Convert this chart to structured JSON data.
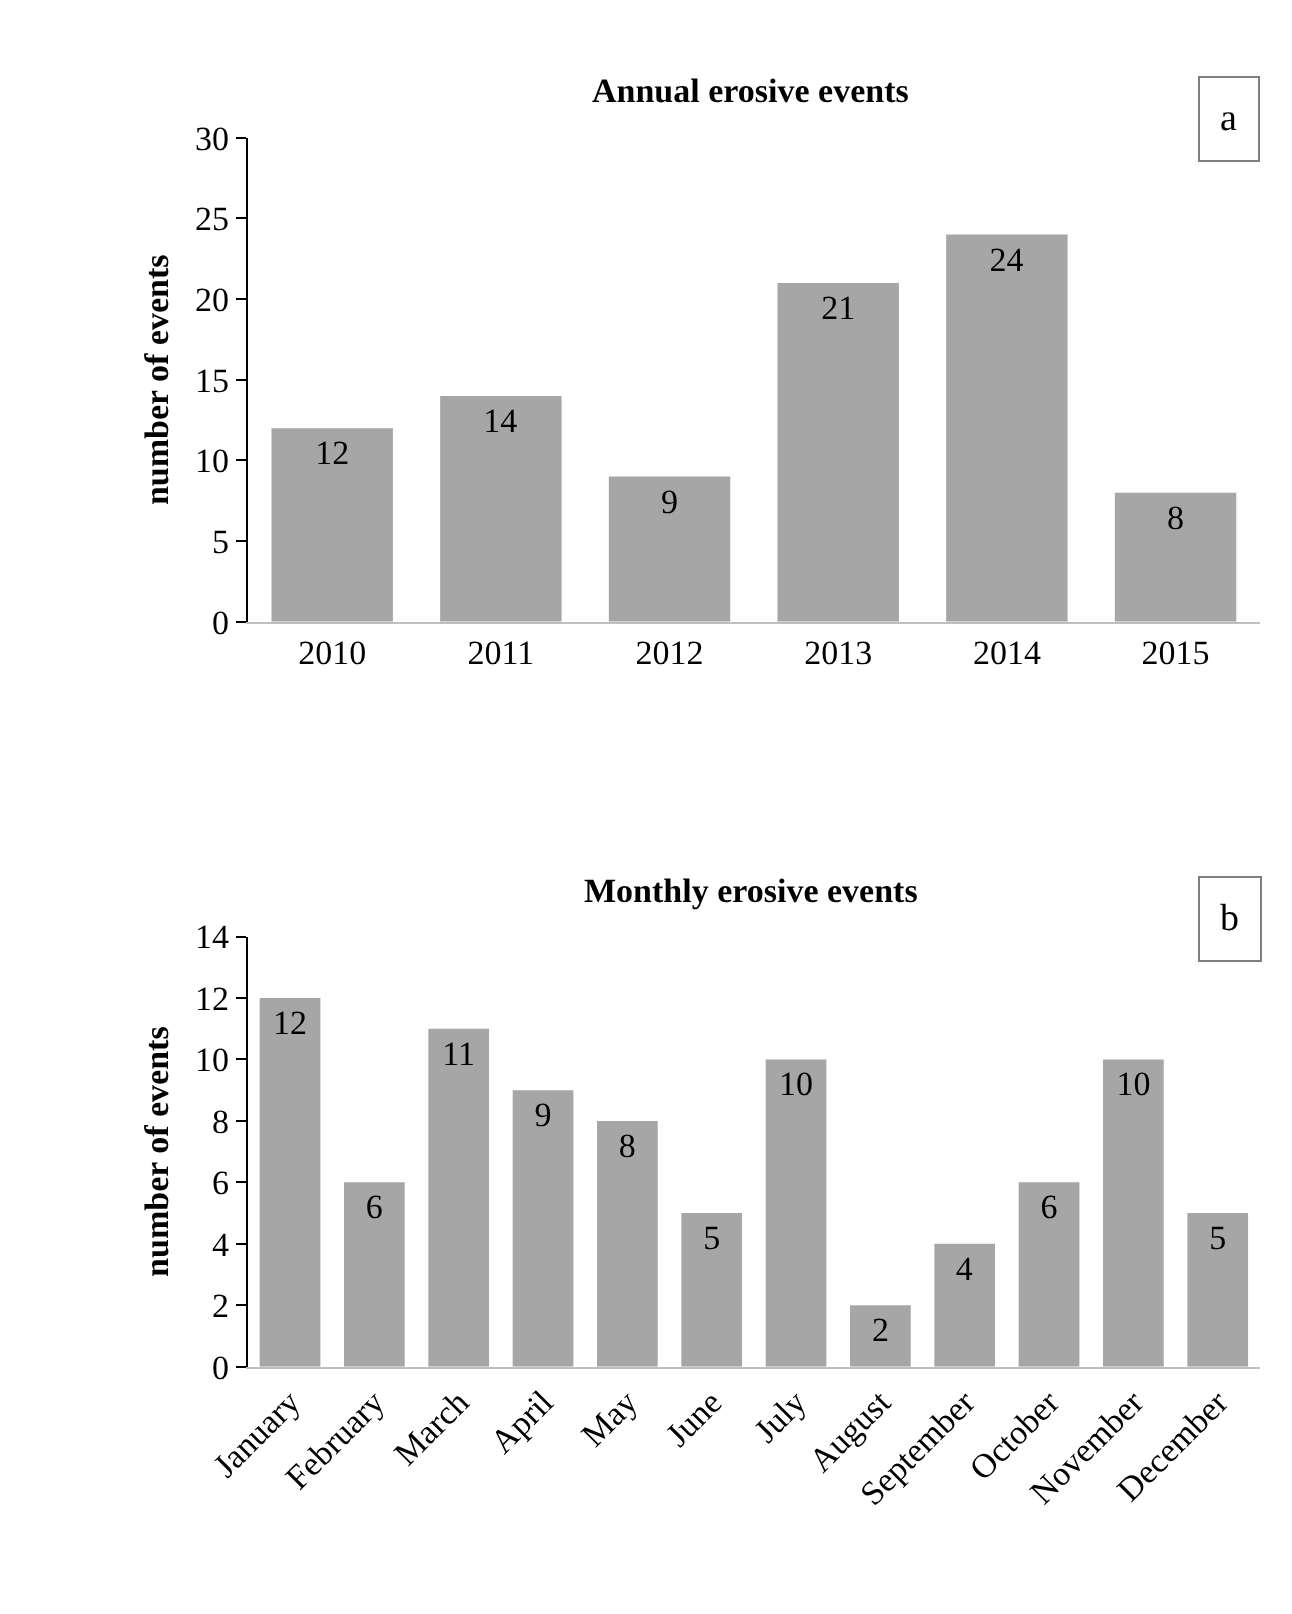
{
  "chart_data": [
    {
      "type": "bar",
      "title": "Annual erosive events",
      "ylabel": "number of events",
      "annotations": [
        "a"
      ],
      "categories": [
        "2010",
        "2011",
        "2012",
        "2013",
        "2014",
        "2015"
      ],
      "values": [
        12,
        14,
        9,
        21,
        24,
        8
      ],
      "color": "#a6a6a6",
      "ylim": [
        0,
        30
      ],
      "yticks": [
        0,
        5,
        10,
        15,
        20,
        25,
        30
      ],
      "data_labels": true,
      "grid": false,
      "legend": false
    },
    {
      "type": "bar",
      "title": "Monthly erosive events",
      "ylabel": "number of events",
      "annotations": [
        "b"
      ],
      "categories": [
        "January",
        "February",
        "March",
        "April",
        "May",
        "June",
        "July",
        "August",
        "September",
        "October",
        "November",
        "December"
      ],
      "values": [
        12,
        6,
        11,
        9,
        8,
        5,
        10,
        2,
        4,
        6,
        10,
        5
      ],
      "color": "#a6a6a6",
      "ylim": [
        0,
        14
      ],
      "yticks": [
        0,
        2,
        4,
        6,
        8,
        10,
        12,
        14
      ],
      "data_labels": true,
      "grid": false,
      "legend": false
    }
  ]
}
